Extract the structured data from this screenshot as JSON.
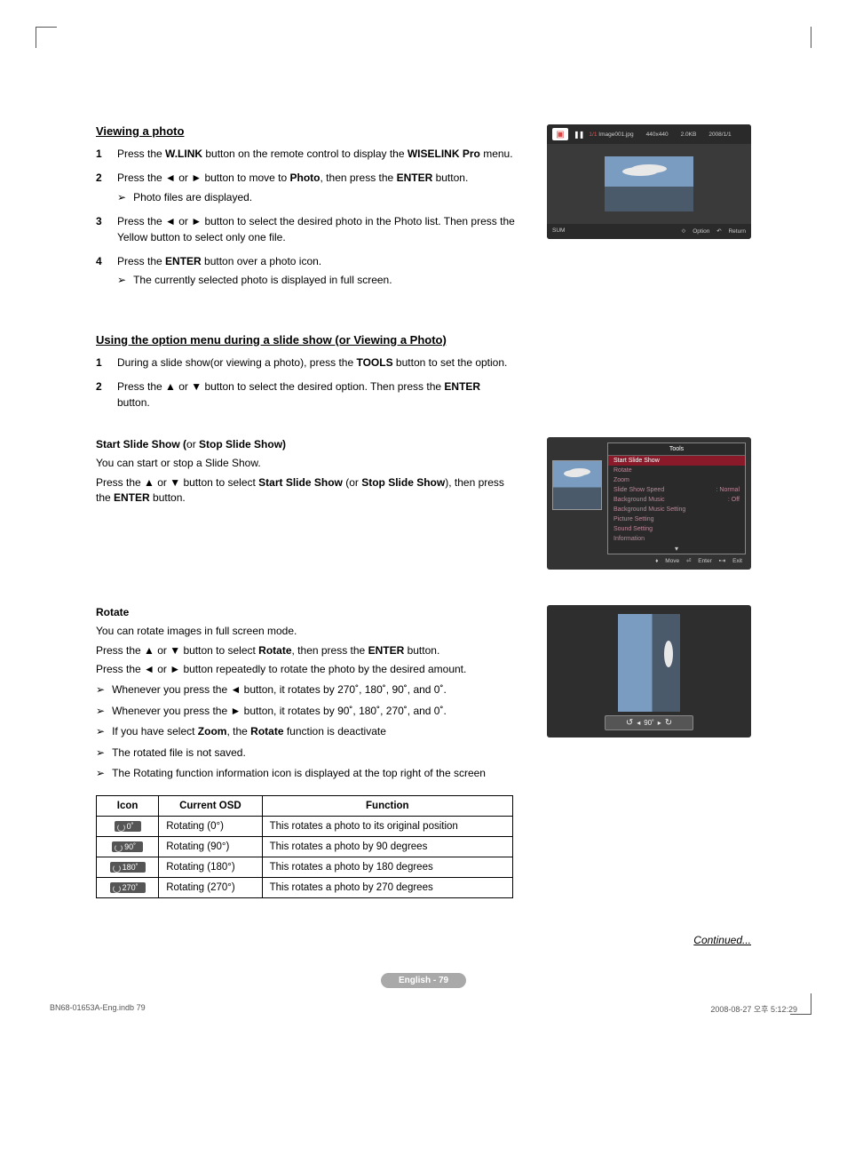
{
  "section1": {
    "title": "Viewing a photo",
    "steps": [
      {
        "num": "1",
        "html": "Press the <b>W.LINK</b> button on the remote control to display the <b>WISELINK Pro</b> menu."
      },
      {
        "num": "2",
        "html": "Press the ◄ or ► button to move to <b>Photo</b>, then press the <b>ENTER</b> button.",
        "sub": "Photo files are displayed."
      },
      {
        "num": "3",
        "html": "Press the ◄ or ► button to select the desired photo in the Photo list. Then press the Yellow button to select only one file."
      },
      {
        "num": "4",
        "html": "Press the <b>ENTER</b> button over a photo icon.",
        "sub": "The currently selected photo is displayed in full screen."
      }
    ]
  },
  "fig_viewer": {
    "idx_label": "1/1",
    "filename": "Image001.jpg",
    "resolution": "440x440",
    "size": "2.0KB",
    "date": "2008/1/1",
    "sum": "SUM",
    "option": "Option",
    "return": "Return"
  },
  "section2": {
    "title": "Using the option menu during a slide show (or Viewing a Photo)",
    "steps": [
      {
        "num": "1",
        "html": "During a slide show(or viewing a photo), press the <b>TOOLS</b> button to set the option."
      },
      {
        "num": "2",
        "html": "Press the ▲ or ▼ button to select the desired option. Then press the <b>ENTER</b> button."
      }
    ]
  },
  "section3": {
    "title_html": "<b>Start Slide Show (</b>or <b>Stop Slide Show)</b>",
    "line1": "You can start or stop a Slide Show.",
    "line2_html": "Press the ▲ or ▼ button to select <b>Start Slide Show</b> (or <b>Stop Slide Show</b>), then press the <b>ENTER</b> button."
  },
  "fig_tools": {
    "title": "Tools",
    "items": [
      {
        "label": "Start Slide Show",
        "sel": true
      },
      {
        "label": "Rotate"
      },
      {
        "label": "Zoom"
      },
      {
        "label": "Slide Show Speed",
        "val": ": Normal"
      },
      {
        "label": "Background Music",
        "val": ":       Off"
      },
      {
        "label": "Background Music Setting"
      },
      {
        "label": "Picture Setting"
      },
      {
        "label": "Sound Setting"
      },
      {
        "label": "Information"
      }
    ],
    "move": "Move",
    "enter": "Enter",
    "exit": "Exit"
  },
  "section4": {
    "title": "Rotate",
    "line1": "You can rotate images in full screen mode.",
    "line2_html": "Press the ▲ or ▼ button to select <b>Rotate</b>, then press the <b>ENTER</b> button.",
    "line3": "Press the ◄ or ► button repeatedly to rotate the photo by the desired amount.",
    "bullets": [
      "Whenever you press the ◄ button, it rotates by 270˚, 180˚, 90˚, and 0˚.",
      "Whenever you press the ► button, it rotates by 90˚, 180˚, 270˚, and 0˚.",
      "If you have select <b>Zoom</b>, the <b>Rotate</b> function is deactivate",
      "The rotated file is not saved.",
      "The Rotating function information icon is displayed at the top right of the screen"
    ]
  },
  "fig_rotate": {
    "deg": "90˚"
  },
  "table": {
    "headers": [
      "Icon",
      "Current OSD",
      "Function"
    ],
    "rows": [
      {
        "badge": "0˚",
        "osd": "Rotating (0°)",
        "fn": "This rotates a photo to its original position"
      },
      {
        "badge": "90˚",
        "osd": "Rotating (90°)",
        "fn": "This rotates a photo by 90 degrees"
      },
      {
        "badge": "180˚",
        "osd": "Rotating (180°)",
        "fn": "This rotates a photo by 180 degrees"
      },
      {
        "badge": "270˚",
        "osd": "Rotating (270°)",
        "fn": "This rotates a photo by 270 degrees"
      }
    ]
  },
  "continued": "Continued...",
  "page_label": "English - 79",
  "print": {
    "left": "BN68-01653A-Eng.indb   79",
    "right": "2008-08-27   오후 5:12:29"
  }
}
